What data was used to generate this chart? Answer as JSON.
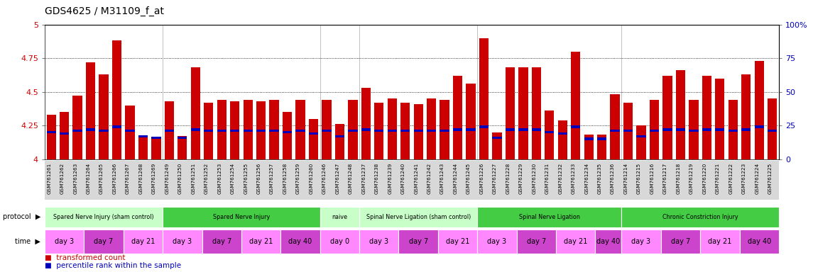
{
  "title": "GDS4625 / M31109_f_at",
  "samples": [
    "GSM761261",
    "GSM761262",
    "GSM761263",
    "GSM761264",
    "GSM761265",
    "GSM761266",
    "GSM761267",
    "GSM761268",
    "GSM761269",
    "GSM761249",
    "GSM761250",
    "GSM761251",
    "GSM761252",
    "GSM761253",
    "GSM761254",
    "GSM761255",
    "GSM761256",
    "GSM761257",
    "GSM761258",
    "GSM761259",
    "GSM761260",
    "GSM761246",
    "GSM761247",
    "GSM761248",
    "GSM761237",
    "GSM761238",
    "GSM761239",
    "GSM761240",
    "GSM761241",
    "GSM761242",
    "GSM761243",
    "GSM761244",
    "GSM761245",
    "GSM761226",
    "GSM761227",
    "GSM761228",
    "GSM761229",
    "GSM761230",
    "GSM761231",
    "GSM761232",
    "GSM761233",
    "GSM761234",
    "GSM761235",
    "GSM761236",
    "GSM761214",
    "GSM761215",
    "GSM761216",
    "GSM761217",
    "GSM761218",
    "GSM761219",
    "GSM761220",
    "GSM761221",
    "GSM761222",
    "GSM761223",
    "GSM761224",
    "GSM761225"
  ],
  "bar_heights": [
    4.33,
    4.35,
    4.47,
    4.72,
    4.63,
    4.88,
    4.4,
    4.17,
    4.16,
    4.43,
    4.17,
    4.68,
    4.42,
    4.44,
    4.43,
    4.44,
    4.43,
    4.44,
    4.35,
    4.44,
    4.3,
    4.44,
    4.26,
    4.44,
    4.53,
    4.42,
    4.45,
    4.42,
    4.41,
    4.45,
    4.44,
    4.62,
    4.56,
    4.9,
    4.2,
    4.68,
    4.68,
    4.68,
    4.36,
    4.29,
    4.8,
    4.18,
    4.18,
    4.48,
    4.42,
    4.25,
    4.44,
    4.62,
    4.66,
    4.44,
    4.62,
    4.6,
    4.44,
    4.63,
    4.73,
    4.45
  ],
  "percentile_vals": [
    20,
    19,
    21,
    22,
    21,
    24,
    21,
    17,
    16,
    21,
    16,
    22,
    21,
    21,
    21,
    21,
    21,
    21,
    20,
    21,
    19,
    21,
    17,
    21,
    22,
    21,
    21,
    21,
    21,
    21,
    21,
    22,
    22,
    24,
    16,
    22,
    22,
    22,
    20,
    19,
    24,
    15,
    15,
    21,
    21,
    17,
    21,
    22,
    22,
    21,
    22,
    22,
    21,
    22,
    24,
    21
  ],
  "ylim_left": [
    4.0,
    5.0
  ],
  "ylim_right": [
    0,
    100
  ],
  "yticks_left": [
    4.0,
    4.25,
    4.5,
    4.75,
    5.0
  ],
  "ytick_labels_left": [
    "4",
    "4.25",
    "4.5",
    "4.75",
    "5"
  ],
  "yticks_right": [
    0,
    25,
    50,
    75,
    100
  ],
  "ytick_labels_right": [
    "0",
    "25",
    "50",
    "75",
    "100%"
  ],
  "dotted_lines": [
    4.25,
    4.5,
    4.75
  ],
  "bar_color": "#cc0000",
  "percentile_color": "#0000bb",
  "plot_bg": "#ffffff",
  "xtick_bg": "#d8d8d8",
  "protocol_groups": [
    {
      "label": "Spared Nerve Injury (sham control)",
      "start": 0,
      "end": 9,
      "color": "#c8ffc8"
    },
    {
      "label": "Spared Nerve Injury",
      "start": 9,
      "end": 21,
      "color": "#44cc44"
    },
    {
      "label": "naive",
      "start": 21,
      "end": 24,
      "color": "#c8ffc8"
    },
    {
      "label": "Spinal Nerve Ligation (sham control)",
      "start": 24,
      "end": 33,
      "color": "#c8ffc8"
    },
    {
      "label": "Spinal Nerve Ligation",
      "start": 33,
      "end": 44,
      "color": "#44cc44"
    },
    {
      "label": "Chronic Constriction Injury",
      "start": 44,
      "end": 56,
      "color": "#44cc44"
    }
  ],
  "time_groups": [
    {
      "label": "day 3",
      "start": 0,
      "end": 3,
      "color": "#ff88ff"
    },
    {
      "label": "day 7",
      "start": 3,
      "end": 6,
      "color": "#cc44cc"
    },
    {
      "label": "day 21",
      "start": 6,
      "end": 9,
      "color": "#ff88ff"
    },
    {
      "label": "day 3",
      "start": 9,
      "end": 12,
      "color": "#ff88ff"
    },
    {
      "label": "day 7",
      "start": 12,
      "end": 15,
      "color": "#cc44cc"
    },
    {
      "label": "day 21",
      "start": 15,
      "end": 18,
      "color": "#ff88ff"
    },
    {
      "label": "day 40",
      "start": 18,
      "end": 21,
      "color": "#cc44cc"
    },
    {
      "label": "day 0",
      "start": 21,
      "end": 24,
      "color": "#ff88ff"
    },
    {
      "label": "day 3",
      "start": 24,
      "end": 27,
      "color": "#ff88ff"
    },
    {
      "label": "day 7",
      "start": 27,
      "end": 30,
      "color": "#cc44cc"
    },
    {
      "label": "day 21",
      "start": 30,
      "end": 33,
      "color": "#ff88ff"
    },
    {
      "label": "day 3",
      "start": 33,
      "end": 36,
      "color": "#ff88ff"
    },
    {
      "label": "day 7",
      "start": 36,
      "end": 39,
      "color": "#cc44cc"
    },
    {
      "label": "day 21",
      "start": 39,
      "end": 42,
      "color": "#ff88ff"
    },
    {
      "label": "day 40",
      "start": 42,
      "end": 44,
      "color": "#cc44cc"
    },
    {
      "label": "day 3",
      "start": 44,
      "end": 47,
      "color": "#ff88ff"
    },
    {
      "label": "day 7",
      "start": 47,
      "end": 50,
      "color": "#cc44cc"
    },
    {
      "label": "day 21",
      "start": 50,
      "end": 53,
      "color": "#ff88ff"
    },
    {
      "label": "day 40",
      "start": 53,
      "end": 56,
      "color": "#cc44cc"
    }
  ],
  "group_separators": [
    9,
    21,
    24,
    33,
    44
  ],
  "legend_items": [
    {
      "label": "transformed count",
      "color": "#cc0000"
    },
    {
      "label": "percentile rank within the sample",
      "color": "#0000bb"
    }
  ],
  "n_samples": 56
}
